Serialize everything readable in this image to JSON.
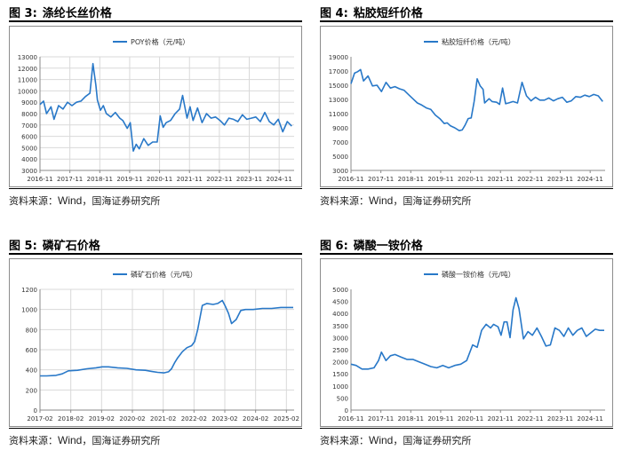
{
  "source_prefix": "资料来源：",
  "source_wind": "Wind",
  "source_suffix": "，国海证券研究所",
  "colors": {
    "series": "#2878c8",
    "grid": "#d9d9d9",
    "axis": "#888888",
    "text": "#333333"
  },
  "panels": [
    {
      "fig": "图 3:",
      "title": "涤纶长丝价格"
    },
    {
      "fig": "图 4:",
      "title": "粘胶短纤价格"
    },
    {
      "fig": "图 5:",
      "title": "磷矿石价格"
    },
    {
      "fig": "图 6:",
      "title": "磷酸一铵价格"
    }
  ],
  "chart_data": [
    {
      "type": "line",
      "legend": "POY价格（元/吨）",
      "legend_position": "top-center",
      "grid": true,
      "ylim": [
        3000,
        13000
      ],
      "yticks": [
        3000,
        4000,
        5000,
        6000,
        7000,
        8000,
        9000,
        10000,
        11000,
        12000,
        13000
      ],
      "xlim": [
        2016.83,
        2025.33
      ],
      "xticks": [
        {
          "x": 2016.83,
          "label": "2016-11"
        },
        {
          "x": 2017.83,
          "label": "2017-11"
        },
        {
          "x": 2018.83,
          "label": "2018-11"
        },
        {
          "x": 2019.83,
          "label": "2019-11"
        },
        {
          "x": 2020.83,
          "label": "2020-11"
        },
        {
          "x": 2021.83,
          "label": "2021-11"
        },
        {
          "x": 2022.83,
          "label": "2022-11"
        },
        {
          "x": 2023.83,
          "label": "2023-11"
        },
        {
          "x": 2024.83,
          "label": "2024-11"
        }
      ],
      "x": [
        2016.83,
        2016.95,
        2017.05,
        2017.2,
        2017.3,
        2017.45,
        2017.6,
        2017.75,
        2017.9,
        2018.05,
        2018.2,
        2018.35,
        2018.5,
        2018.6,
        2018.7,
        2018.75,
        2018.85,
        2018.95,
        2019.05,
        2019.2,
        2019.35,
        2019.5,
        2019.6,
        2019.75,
        2019.85,
        2019.95,
        2020.05,
        2020.15,
        2020.3,
        2020.45,
        2020.6,
        2020.75,
        2020.85,
        2020.95,
        2021.05,
        2021.2,
        2021.35,
        2021.5,
        2021.6,
        2021.75,
        2021.85,
        2021.95,
        2022.1,
        2022.25,
        2022.4,
        2022.55,
        2022.7,
        2022.85,
        2023.0,
        2023.15,
        2023.3,
        2023.45,
        2023.6,
        2023.75,
        2023.9,
        2024.05,
        2024.2,
        2024.35,
        2024.5,
        2024.65,
        2024.8,
        2024.95,
        2025.1,
        2025.25
      ],
      "y": [
        8800,
        9100,
        8000,
        8600,
        7500,
        8700,
        8400,
        9000,
        8700,
        9000,
        9100,
        9500,
        9800,
        12400,
        10500,
        9200,
        8300,
        8700,
        8000,
        7700,
        8100,
        7600,
        7400,
        6700,
        7200,
        4700,
        5300,
        4900,
        5800,
        5200,
        5500,
        5500,
        7800,
        6800,
        7200,
        7400,
        8000,
        8400,
        9600,
        7600,
        8600,
        7400,
        8500,
        7200,
        8000,
        7600,
        7700,
        7400,
        7000,
        7600,
        7500,
        7300,
        7900,
        7500,
        7600,
        7700,
        7300,
        8100,
        7300,
        7000,
        7500,
        6400,
        7300,
        6900
      ],
      "ylabel": "",
      "xlabel": "",
      "title": ""
    },
    {
      "type": "line",
      "legend": "粘胶短纤价格（元/吨）",
      "legend_position": "top-center",
      "grid": false,
      "ylim": [
        3000,
        19000
      ],
      "yticks": [
        3000,
        5000,
        7000,
        9000,
        11000,
        13000,
        15000,
        17000,
        19000
      ],
      "xlim": [
        2016.83,
        2025.33
      ],
      "xticks": [
        {
          "x": 2016.83,
          "label": "2016-11"
        },
        {
          "x": 2017.83,
          "label": "2017-11"
        },
        {
          "x": 2018.83,
          "label": "2018-11"
        },
        {
          "x": 2019.83,
          "label": "2019-11"
        },
        {
          "x": 2020.83,
          "label": "2020-11"
        },
        {
          "x": 2021.83,
          "label": "2021-11"
        },
        {
          "x": 2022.83,
          "label": "2022-11"
        },
        {
          "x": 2023.83,
          "label": "2023-11"
        },
        {
          "x": 2024.83,
          "label": "2024-11"
        }
      ],
      "x": [
        2016.83,
        2016.95,
        2017.05,
        2017.15,
        2017.25,
        2017.4,
        2017.55,
        2017.7,
        2017.85,
        2018.0,
        2018.15,
        2018.3,
        2018.45,
        2018.6,
        2018.75,
        2018.9,
        2019.05,
        2019.2,
        2019.35,
        2019.5,
        2019.65,
        2019.8,
        2019.95,
        2020.05,
        2020.15,
        2020.3,
        2020.45,
        2020.55,
        2020.65,
        2020.75,
        2020.85,
        2020.95,
        2021.05,
        2021.15,
        2021.25,
        2021.3,
        2021.45,
        2021.55,
        2021.7,
        2021.8,
        2021.9,
        2022.0,
        2022.1,
        2022.25,
        2022.4,
        2022.55,
        2022.7,
        2022.85,
        2023.0,
        2023.15,
        2023.3,
        2023.45,
        2023.6,
        2023.75,
        2023.9,
        2024.05,
        2024.2,
        2024.35,
        2024.5,
        2024.65,
        2024.8,
        2024.95,
        2025.1,
        2025.25
      ],
      "y": [
        15200,
        16700,
        16900,
        17200,
        15600,
        16300,
        14900,
        15000,
        14100,
        15400,
        14600,
        14800,
        14500,
        14300,
        13700,
        13100,
        12500,
        12200,
        11800,
        11600,
        10800,
        10300,
        9600,
        9700,
        9300,
        9000,
        8600,
        8700,
        9400,
        10300,
        10400,
        12700,
        15900,
        14900,
        14400,
        12500,
        13100,
        12700,
        12600,
        12300,
        14600,
        12400,
        12500,
        12700,
        12500,
        15400,
        13500,
        12800,
        13300,
        12900,
        12900,
        13200,
        12800,
        13100,
        13300,
        12600,
        12800,
        13400,
        13300,
        13600,
        13400,
        13700,
        13500,
        12700
      ],
      "ylabel": "",
      "xlabel": "",
      "title": ""
    },
    {
      "type": "line",
      "legend": "磷矿石价格（元/吨）",
      "legend_position": "top-center",
      "grid": true,
      "ylim": [
        0,
        1200
      ],
      "yticks": [
        0,
        200,
        400,
        600,
        800,
        1000,
        1200
      ],
      "xlim": [
        2017.08,
        2025.33
      ],
      "xticks": [
        {
          "x": 2017.08,
          "label": "2017-02"
        },
        {
          "x": 2018.08,
          "label": "2018-02"
        },
        {
          "x": 2019.08,
          "label": "2019-02"
        },
        {
          "x": 2020.08,
          "label": "2020-02"
        },
        {
          "x": 2021.08,
          "label": "2021-02"
        },
        {
          "x": 2022.08,
          "label": "2022-02"
        },
        {
          "x": 2023.08,
          "label": "2023-02"
        },
        {
          "x": 2024.08,
          "label": "2024-02"
        },
        {
          "x": 2025.08,
          "label": "2025-02"
        }
      ],
      "x": [
        2017.08,
        2017.3,
        2017.6,
        2017.8,
        2018.0,
        2018.3,
        2018.6,
        2018.9,
        2019.1,
        2019.3,
        2019.6,
        2019.9,
        2020.2,
        2020.5,
        2020.7,
        2020.9,
        2021.1,
        2021.25,
        2021.35,
        2021.45,
        2021.55,
        2021.7,
        2021.85,
        2022.0,
        2022.1,
        2022.2,
        2022.35,
        2022.5,
        2022.7,
        2022.85,
        2023.0,
        2023.1,
        2023.2,
        2023.3,
        2023.45,
        2023.6,
        2023.75,
        2024.0,
        2024.3,
        2024.6,
        2024.9,
        2025.3
      ],
      "y": [
        340,
        340,
        345,
        360,
        390,
        395,
        410,
        420,
        430,
        430,
        420,
        415,
        400,
        395,
        385,
        375,
        370,
        380,
        410,
        470,
        520,
        580,
        620,
        640,
        680,
        800,
        1040,
        1060,
        1050,
        1060,
        1090,
        1030,
        960,
        860,
        900,
        990,
        1000,
        1000,
        1010,
        1010,
        1020,
        1020
      ],
      "ylabel": "",
      "xlabel": "",
      "title": ""
    },
    {
      "type": "line",
      "legend": "磷酸一铵价格（元/吨）",
      "legend_position": "top-center",
      "grid": false,
      "ylim": [
        0,
        5000
      ],
      "yticks": [
        0,
        500,
        1000,
        1500,
        2000,
        2500,
        3000,
        3500,
        4000,
        4500,
        5000
      ],
      "xlim": [
        2016.83,
        2025.33
      ],
      "xticks": [
        {
          "x": 2016.83,
          "label": "2016-11"
        },
        {
          "x": 2017.83,
          "label": "2017-11"
        },
        {
          "x": 2018.83,
          "label": "2018-11"
        },
        {
          "x": 2019.83,
          "label": "2019-11"
        },
        {
          "x": 2020.83,
          "label": "2020-11"
        },
        {
          "x": 2021.83,
          "label": "2021-11"
        },
        {
          "x": 2022.83,
          "label": "2022-11"
        },
        {
          "x": 2023.83,
          "label": "2023-11"
        },
        {
          "x": 2024.83,
          "label": "2024-11"
        }
      ],
      "x": [
        2016.83,
        2017.0,
        2017.2,
        2017.4,
        2017.6,
        2017.75,
        2017.85,
        2018.0,
        2018.15,
        2018.3,
        2018.5,
        2018.7,
        2018.9,
        2019.1,
        2019.3,
        2019.5,
        2019.7,
        2019.9,
        2020.1,
        2020.3,
        2020.5,
        2020.7,
        2020.9,
        2021.05,
        2021.2,
        2021.35,
        2021.5,
        2021.6,
        2021.75,
        2021.85,
        2021.95,
        2022.05,
        2022.15,
        2022.25,
        2022.35,
        2022.45,
        2022.6,
        2022.75,
        2022.9,
        2023.05,
        2023.2,
        2023.35,
        2023.5,
        2023.65,
        2023.8,
        2023.95,
        2024.1,
        2024.25,
        2024.4,
        2024.55,
        2024.7,
        2024.85,
        2025.0,
        2025.15,
        2025.3
      ],
      "y": [
        1900,
        1850,
        1700,
        1700,
        1750,
        2050,
        2400,
        2050,
        2250,
        2300,
        2200,
        2100,
        2100,
        2000,
        1900,
        1800,
        1750,
        1850,
        1750,
        1850,
        1900,
        2050,
        2700,
        2600,
        3300,
        3550,
        3400,
        3550,
        3450,
        3100,
        3650,
        3650,
        3000,
        4150,
        4650,
        4200,
        2950,
        3250,
        3100,
        3400,
        3050,
        2650,
        2700,
        3400,
        3300,
        3050,
        3400,
        3100,
        3300,
        3400,
        3050,
        3200,
        3350,
        3300,
        3300
      ],
      "ylabel": "",
      "xlabel": "",
      "title": ""
    }
  ]
}
